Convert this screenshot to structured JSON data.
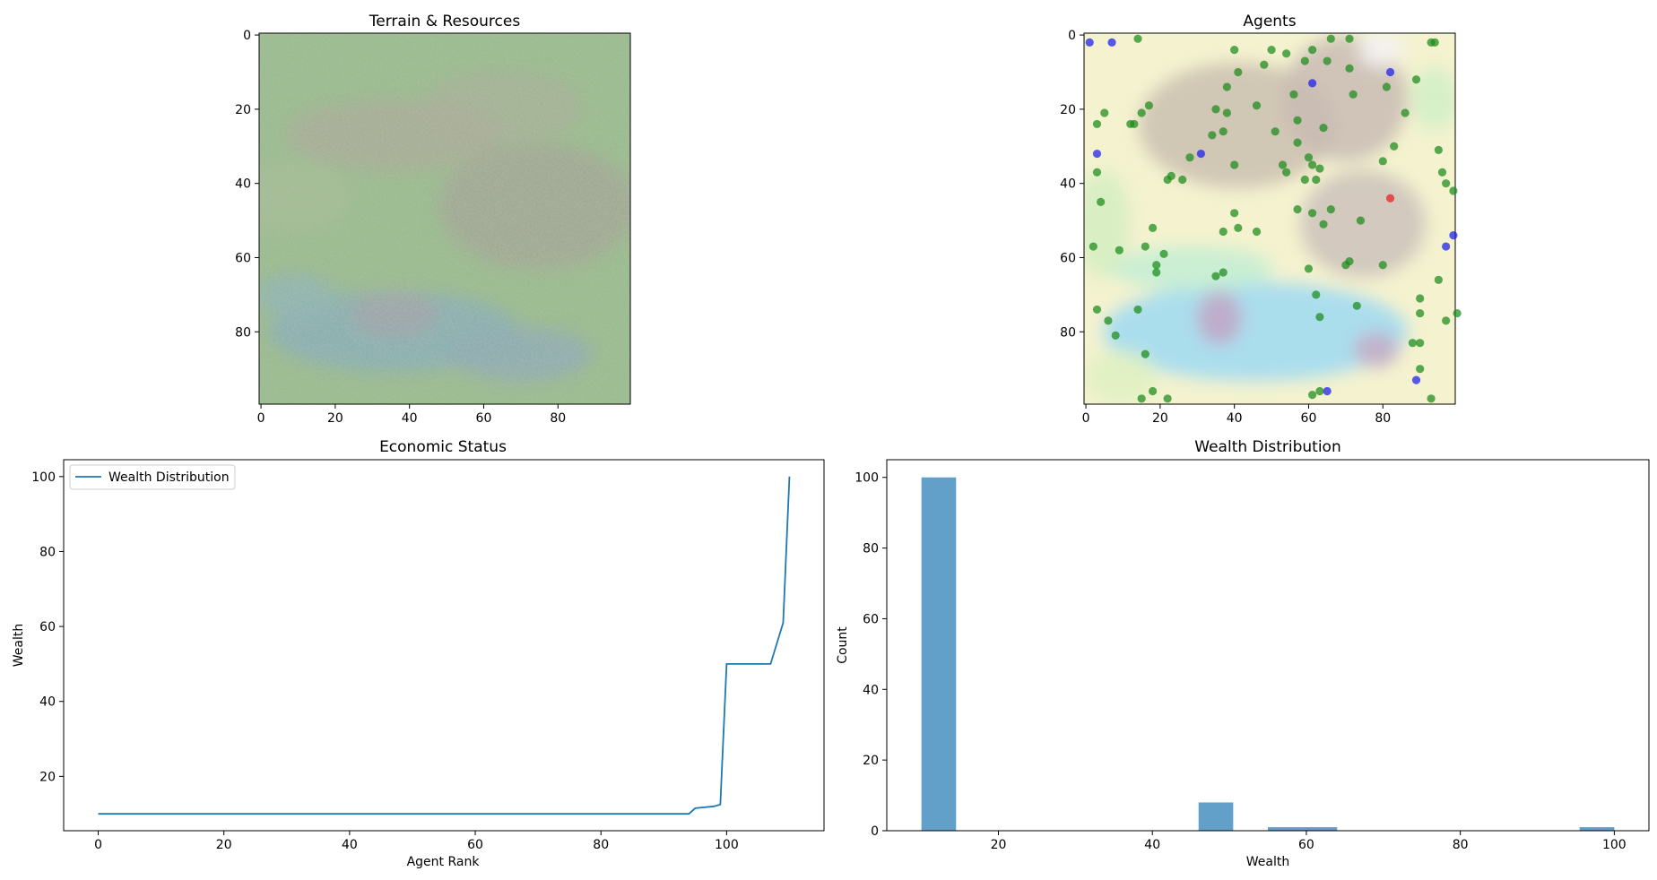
{
  "chart_data": [
    {
      "type": "heatmap",
      "title": "Terrain & Resources",
      "xlabel": "",
      "ylabel": "",
      "xlim": [
        0,
        99
      ],
      "ylim": [
        99,
        0
      ],
      "x_ticks": [
        "0",
        "20",
        "40",
        "60",
        "80"
      ],
      "y_ticks": [
        "0",
        "20",
        "40",
        "60",
        "80"
      ],
      "description_colors": {
        "grass": "#8fbe83",
        "hills": "#a8a88e",
        "water": "#7eb0b8"
      }
    },
    {
      "type": "scatter",
      "title": "Agents",
      "xlabel": "",
      "ylabel": "",
      "xlim": [
        0,
        99
      ],
      "ylim": [
        99,
        0
      ],
      "x_ticks": [
        "0",
        "20",
        "40",
        "60",
        "80"
      ],
      "y_ticks": [
        "0",
        "20",
        "40",
        "60",
        "80"
      ],
      "series": [
        {
          "color": "#1a8a1a",
          "points": [
            [
              14,
              1
            ],
            [
              40,
              4
            ],
            [
              50,
              4
            ],
            [
              54,
              5
            ],
            [
              61,
              4
            ],
            [
              66,
              1
            ],
            [
              71,
              1
            ],
            [
              65,
              7
            ],
            [
              59,
              7
            ],
            [
              48,
              8
            ],
            [
              41,
              10
            ],
            [
              71,
              9
            ],
            [
              93,
              2
            ],
            [
              94,
              2
            ],
            [
              38,
              14
            ],
            [
              81,
              14
            ],
            [
              56,
              16
            ],
            [
              72,
              16
            ],
            [
              89,
              12
            ],
            [
              3,
              24
            ],
            [
              5,
              21
            ],
            [
              15,
              21
            ],
            [
              17,
              19
            ],
            [
              12,
              24
            ],
            [
              13,
              24
            ],
            [
              35,
              20
            ],
            [
              38,
              21
            ],
            [
              46,
              19
            ],
            [
              86,
              21
            ],
            [
              57,
              23
            ],
            [
              64,
              25
            ],
            [
              51,
              26
            ],
            [
              37,
              26
            ],
            [
              34,
              27
            ],
            [
              57,
              29
            ],
            [
              83,
              30
            ],
            [
              95,
              31
            ],
            [
              28,
              33
            ],
            [
              40,
              35
            ],
            [
              53,
              35
            ],
            [
              60,
              33
            ],
            [
              61,
              35
            ],
            [
              63,
              36
            ],
            [
              23,
              38
            ],
            [
              26,
              39
            ],
            [
              22,
              39
            ],
            [
              54,
              37
            ],
            [
              59,
              39
            ],
            [
              62,
              39
            ],
            [
              80,
              34
            ],
            [
              96,
              37
            ],
            [
              3,
              37
            ],
            [
              97,
              40
            ],
            [
              99,
              42
            ],
            [
              4,
              45
            ],
            [
              40,
              48
            ],
            [
              57,
              47
            ],
            [
              61,
              48
            ],
            [
              66,
              47
            ],
            [
              41,
              52
            ],
            [
              37,
              53
            ],
            [
              46,
              53
            ],
            [
              64,
              51
            ],
            [
              74,
              50
            ],
            [
              18,
              52
            ],
            [
              2,
              57
            ],
            [
              16,
              57
            ],
            [
              9,
              58
            ],
            [
              21,
              59
            ],
            [
              19,
              62
            ],
            [
              19,
              64
            ],
            [
              37,
              64
            ],
            [
              35,
              65
            ],
            [
              60,
              63
            ],
            [
              71,
              61
            ],
            [
              70,
              62
            ],
            [
              80,
              62
            ],
            [
              95,
              66
            ],
            [
              62,
              70
            ],
            [
              90,
              71
            ],
            [
              73,
              73
            ],
            [
              3,
              74
            ],
            [
              14,
              74
            ],
            [
              90,
              75
            ],
            [
              100,
              75
            ],
            [
              63,
              76
            ],
            [
              97,
              77
            ],
            [
              6,
              77
            ],
            [
              8,
              81
            ],
            [
              16,
              86
            ],
            [
              88,
              83
            ],
            [
              90,
              83
            ],
            [
              90,
              90
            ],
            [
              18,
              96
            ],
            [
              15,
              98
            ],
            [
              22,
              98
            ],
            [
              61,
              97
            ],
            [
              63,
              96
            ],
            [
              93,
              98
            ]
          ]
        },
        {
          "color": "#1a1aee",
          "points": [
            [
              1,
              2
            ],
            [
              7,
              2
            ],
            [
              61,
              13
            ],
            [
              82,
              10
            ],
            [
              3,
              32
            ],
            [
              31,
              32
            ],
            [
              99,
              54
            ],
            [
              97,
              57
            ],
            [
              89,
              93
            ],
            [
              65,
              96
            ]
          ]
        },
        {
          "color": "#ee1a1a",
          "points": [
            [
              82,
              44
            ]
          ]
        }
      ]
    },
    {
      "type": "line",
      "title": "Economic Status",
      "xlabel": "Agent Rank",
      "ylabel": "Wealth",
      "xlim": [
        -5.5,
        115.5
      ],
      "ylim": [
        5.5,
        104.5
      ],
      "x_ticks": [
        0,
        20,
        40,
        60,
        80,
        100
      ],
      "y_ticks": [
        20,
        40,
        60,
        80,
        100
      ],
      "legend": "upper-left",
      "series": [
        {
          "name": "Wealth Distribution",
          "color": "#1f77b4",
          "x": [
            0,
            94,
            95,
            98,
            99,
            100,
            107,
            109,
            110
          ],
          "y": [
            10,
            10,
            11.5,
            12,
            12.5,
            50,
            50,
            61,
            100
          ]
        }
      ]
    },
    {
      "type": "bar",
      "title": "Wealth Distribution",
      "xlabel": "Wealth",
      "ylabel": "Count",
      "xlim": [
        5.5,
        104.5
      ],
      "ylim": [
        0,
        105
      ],
      "x_ticks": [
        20,
        40,
        60,
        80,
        100
      ],
      "y_ticks": [
        0,
        20,
        40,
        60,
        80,
        100
      ],
      "color": "#1f77b4",
      "bins": [
        {
          "x0": 10,
          "x1": 14.5,
          "count": 100
        },
        {
          "x0": 46,
          "x1": 50.5,
          "count": 8
        },
        {
          "x0": 55,
          "x1": 59.5,
          "count": 1
        },
        {
          "x0": 59.5,
          "x1": 64,
          "count": 1
        },
        {
          "x0": 95.5,
          "x1": 100,
          "count": 1
        }
      ]
    }
  ]
}
